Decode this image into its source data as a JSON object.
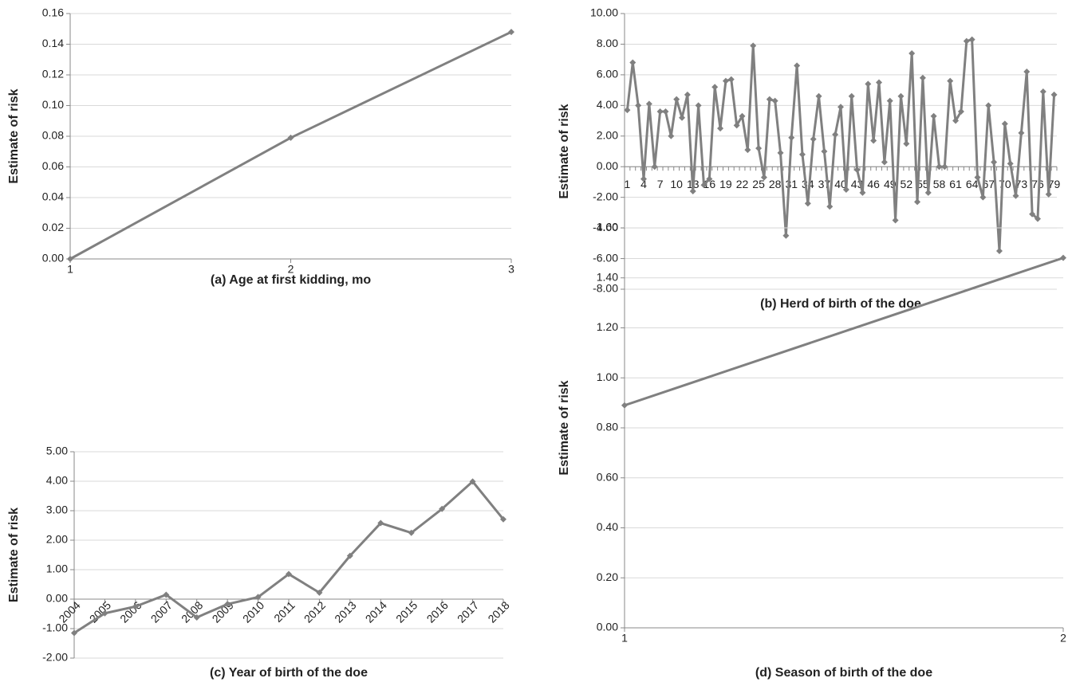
{
  "chart_data": [
    {
      "type": "line",
      "x_label": "(a) Age at first kidding, mo",
      "y_label": "Estimate of risk",
      "categories": [
        "1",
        "2",
        "3"
      ],
      "values": [
        0,
        0.079,
        0.148
      ],
      "color": "#808080",
      "ylim": [
        0,
        0.16
      ],
      "yticks": [
        {
          "value": 0,
          "label": "0.00"
        },
        {
          "value": 0.02,
          "label": "0.02"
        },
        {
          "value": 0.04,
          "label": "0.04"
        },
        {
          "value": 0.06,
          "label": "0.06"
        },
        {
          "value": 0.08,
          "label": "0.08"
        },
        {
          "value": 0.1,
          "label": "0.10"
        },
        {
          "value": 0.12,
          "label": "0.12"
        },
        {
          "value": 0.14,
          "label": "0.14"
        },
        {
          "value": 0.16,
          "label": "0.16"
        }
      ],
      "grid": true
    },
    {
      "type": "line",
      "x_label": "(b) Herd of birth of the doe",
      "y_label": "Estimate of risk",
      "categories": [
        "1",
        null,
        null,
        "4",
        null,
        null,
        "7",
        null,
        null,
        "10",
        null,
        null,
        "13",
        null,
        null,
        "16",
        null,
        null,
        "19",
        null,
        null,
        "22",
        null,
        null,
        "25",
        null,
        null,
        "28",
        null,
        null,
        "31",
        null,
        null,
        "34",
        null,
        null,
        "37",
        null,
        null,
        "40",
        null,
        null,
        "43",
        null,
        null,
        "46",
        null,
        null,
        "49",
        null,
        null,
        "52",
        null,
        null,
        "55",
        null,
        null,
        "58",
        null,
        null,
        "61",
        null,
        null,
        "64",
        null,
        null,
        "67",
        null,
        null,
        "70",
        null,
        null,
        "73",
        null,
        null,
        "76",
        null,
        null,
        "79"
      ],
      "values": [
        3.7,
        6.8,
        4.0,
        -0.8,
        4.1,
        0.0,
        3.6,
        3.6,
        2.0,
        4.4,
        3.2,
        4.7,
        -1.6,
        4.0,
        -1.2,
        -0.8,
        5.2,
        2.5,
        5.6,
        5.7,
        2.7,
        3.3,
        1.1,
        7.9,
        1.2,
        -0.7,
        4.4,
        4.3,
        0.9,
        -4.5,
        1.9,
        6.6,
        0.8,
        -2.4,
        1.8,
        4.6,
        1.0,
        -2.6,
        2.1,
        3.9,
        -1.5,
        4.6,
        -0.2,
        -1.7,
        5.4,
        1.7,
        5.5,
        0.3,
        4.3,
        -3.5,
        4.6,
        1.5,
        7.4,
        -2.3,
        5.8,
        -1.7,
        3.3,
        0.0,
        0.0,
        5.6,
        3.0,
        3.6,
        8.2,
        8.3,
        -0.7,
        -2.0,
        4.0,
        0.3,
        -5.5,
        2.8,
        0.2,
        -1.9,
        2.2,
        6.2,
        -3.1,
        -3.4,
        4.9,
        -1.8,
        4.7
      ],
      "color": "#808080",
      "ylim": [
        -8,
        10
      ],
      "yticks": [
        {
          "value": -8,
          "label": "-8.00"
        },
        {
          "value": -6,
          "label": "-6.00"
        },
        {
          "value": -4,
          "label": "-4.00"
        },
        {
          "value": -2,
          "label": "-2.00"
        },
        {
          "value": 0,
          "label": "0.00"
        },
        {
          "value": 2,
          "label": "2.00"
        },
        {
          "value": 4,
          "label": "4.00"
        },
        {
          "value": 6,
          "label": "6.00"
        },
        {
          "value": 8,
          "label": "8.00"
        },
        {
          "value": 10,
          "label": "10.00"
        }
      ],
      "grid": true
    },
    {
      "type": "line",
      "x_label": "(c)  Year of birth of the doe",
      "y_label": "Estimate of risk",
      "categories": [
        "2004",
        "2005",
        "2006",
        "2007",
        "2008",
        "2009",
        "2010",
        "2011",
        "2012",
        "2013",
        "2014",
        "2015",
        "2016",
        "2017",
        "2018"
      ],
      "values": [
        -1.15,
        -0.48,
        -0.25,
        0.15,
        -0.62,
        -0.17,
        0.07,
        0.85,
        0.22,
        1.47,
        2.58,
        2.25,
        3.06,
        3.99,
        2.71
      ],
      "color": "#808080",
      "ylim": [
        -2,
        5
      ],
      "yticks": [
        {
          "value": -2,
          "label": "-2.00"
        },
        {
          "value": -1,
          "label": "-1.00"
        },
        {
          "value": 0,
          "label": "0.00"
        },
        {
          "value": 1,
          "label": "1.00"
        },
        {
          "value": 2,
          "label": "2.00"
        },
        {
          "value": 3,
          "label": "3.00"
        },
        {
          "value": 4,
          "label": "4.00"
        },
        {
          "value": 5,
          "label": "5.00"
        }
      ],
      "grid": true
    },
    {
      "type": "line",
      "x_label": "(d)  Season of birth of the doe",
      "y_label": "Estimate of risk",
      "categories": [
        "1",
        "2"
      ],
      "values": [
        0.89,
        1.48
      ],
      "color": "#808080",
      "ylim": [
        0,
        1.6
      ],
      "yticks": [
        {
          "value": 0,
          "label": "0.00"
        },
        {
          "value": 0.2,
          "label": "0.20"
        },
        {
          "value": 0.4,
          "label": "0.40"
        },
        {
          "value": 0.6,
          "label": "0.60"
        },
        {
          "value": 0.8,
          "label": "0.80"
        },
        {
          "value": 1,
          "label": "1.00"
        },
        {
          "value": 1.2,
          "label": "1.20"
        },
        {
          "value": 1.4,
          "label": "1.40"
        },
        {
          "value": 1.6,
          "label": "1.60"
        }
      ],
      "grid": true
    }
  ]
}
